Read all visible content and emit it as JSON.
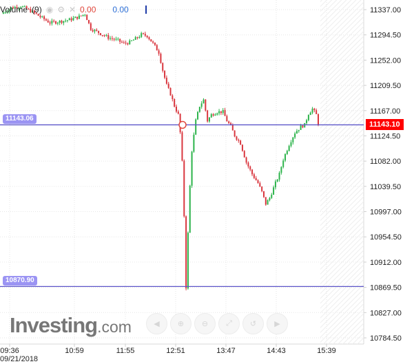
{
  "legend": {
    "name": "Volume",
    "period": "(9)",
    "value_red": "0.00",
    "value_blue": "0.00"
  },
  "horizontal_lines": [
    {
      "label": "11143.06",
      "value": 11143.06
    },
    {
      "label": "10870.90",
      "value": 10870.9
    }
  ],
  "current_price": {
    "label": "11143.10",
    "value": 11143.1
  },
  "logo": {
    "main": "Investing",
    "suffix": ".com"
  },
  "nav_controls": [
    "step-back-icon",
    "zoom-in-icon",
    "zoom-out-icon",
    "fit-icon",
    "reset-icon",
    "step-forward-icon"
  ],
  "colors": {
    "up": "#2bb34a",
    "down": "#d9363e",
    "lines": "#5c55c9",
    "price_tag": "#ff0000",
    "tag": "#9b94f3"
  },
  "chart_data": {
    "type": "candlestick",
    "title": "",
    "date_label": "09/21/2018",
    "x_ticks": [
      "09:36",
      "10:59",
      "11:55",
      "12:51",
      "13:47",
      "14:43",
      "15:39"
    ],
    "y_ticks": [
      "11337.00",
      "11294.50",
      "11252.00",
      "11209.50",
      "11167.00",
      "11124.50",
      "11082.00",
      "11039.50",
      "10997.00",
      "10954.50",
      "10912.00",
      "10869.50",
      "10827.00",
      "10784.50"
    ],
    "ylim": [
      10784.5,
      11337.0
    ],
    "grid": "dotted",
    "price_path": [
      [
        0,
        11330
      ],
      [
        5,
        11340
      ],
      [
        10,
        11343
      ],
      [
        15,
        11335
      ],
      [
        20,
        11325
      ],
      [
        25,
        11315
      ],
      [
        30,
        11317
      ],
      [
        35,
        11320
      ],
      [
        40,
        11325
      ],
      [
        43,
        11330
      ],
      [
        46,
        11305
      ],
      [
        55,
        11290
      ],
      [
        60,
        11285
      ],
      [
        63,
        11280
      ],
      [
        66,
        11282
      ],
      [
        70,
        11290
      ],
      [
        72,
        11295
      ],
      [
        75,
        11293
      ],
      [
        78,
        11280
      ],
      [
        81,
        11265
      ],
      [
        83,
        11235
      ],
      [
        85,
        11210
      ],
      [
        87,
        11195
      ],
      [
        89,
        11175
      ],
      [
        91,
        11160
      ],
      [
        92,
        11130
      ],
      [
        93,
        11080
      ],
      [
        94,
        10990
      ],
      [
        95,
        10870
      ],
      [
        96,
        10960
      ],
      [
        97,
        11040
      ],
      [
        98,
        11100
      ],
      [
        100,
        11150
      ],
      [
        102,
        11175
      ],
      [
        104,
        11185
      ],
      [
        106,
        11150
      ],
      [
        108,
        11160
      ],
      [
        111,
        11165
      ],
      [
        114,
        11165
      ],
      [
        116,
        11150
      ],
      [
        118,
        11140
      ],
      [
        120,
        11125
      ],
      [
        123,
        11112
      ],
      [
        126,
        11080
      ],
      [
        129,
        11060
      ],
      [
        132,
        11045
      ],
      [
        134,
        11030
      ],
      [
        136,
        11010
      ],
      [
        138,
        11020
      ],
      [
        141,
        11045
      ],
      [
        143,
        11060
      ],
      [
        145,
        11085
      ],
      [
        148,
        11110
      ],
      [
        151,
        11130
      ],
      [
        154,
        11140
      ],
      [
        156,
        11143
      ],
      [
        158,
        11162
      ],
      [
        160,
        11170
      ],
      [
        162,
        11160
      ],
      [
        163,
        11145
      ]
    ],
    "session_end_index": 163
  }
}
